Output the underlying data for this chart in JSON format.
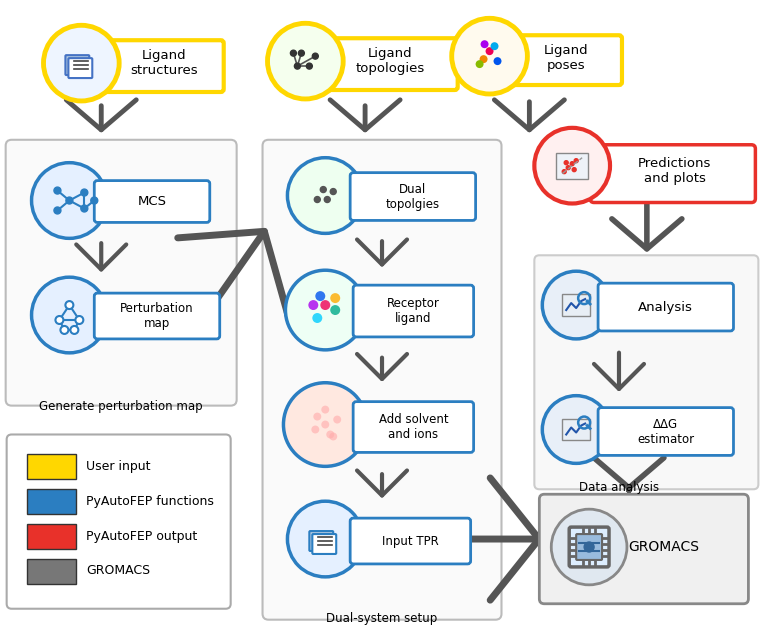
{
  "bg": "#ffffff",
  "yellow": "#FFD700",
  "blue": "#2B7EC1",
  "red": "#E8312A",
  "gray": "#666666",
  "dark_gray": "#555555",
  "legend": [
    {
      "label": "User input",
      "color": "#FFD700"
    },
    {
      "label": "PyAutoFEP functions",
      "color": "#2B7EC1"
    },
    {
      "label": "PyAutoFEP output",
      "color": "#E8312A"
    },
    {
      "label": "GROMACS",
      "color": "#777777"
    }
  ]
}
